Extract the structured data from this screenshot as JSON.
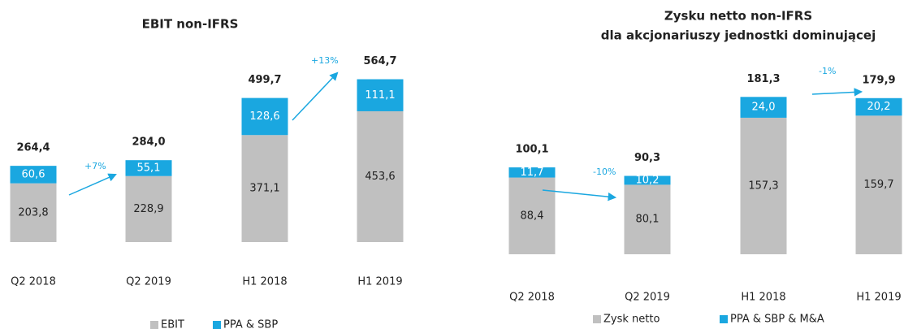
{
  "chart_data": [
    {
      "type": "stacked-bar",
      "title": [
        "EBIT non-IFRS"
      ],
      "categories": [
        "Q2 2018",
        "Q2 2019",
        "H1 2018",
        "H1 2019"
      ],
      "series": [
        {
          "name": "EBIT",
          "color": "#c0c0c0",
          "values": [
            203.8,
            228.9,
            371.1,
            453.6
          ],
          "value_labels": [
            "203,8",
            "228,9",
            "371,1",
            "453,6"
          ]
        },
        {
          "name": "PPA & SBP",
          "color": "#1aa7e0",
          "values": [
            60.6,
            55.1,
            128.6,
            111.1
          ],
          "value_labels": [
            "60,6",
            "55,1",
            "128,6",
            "111,1"
          ]
        }
      ],
      "totals": [
        264.4,
        284.0,
        499.7,
        564.7
      ],
      "total_labels": [
        "264,4",
        "284,0",
        "499,7",
        "564,7"
      ],
      "annotations": [
        "+7%",
        "+13%"
      ],
      "ylim": [
        0,
        600
      ]
    },
    {
      "type": "stacked-bar",
      "title": [
        "Zysku netto non-IFRS",
        "dla akcjonariuszy jednostki dominującej"
      ],
      "categories": [
        "Q2 2018",
        "Q2 2019",
        "H1 2018",
        "H1 2019"
      ],
      "series": [
        {
          "name": "Zysk netto",
          "color": "#c0c0c0",
          "values": [
            88.4,
            80.1,
            157.3,
            159.7
          ],
          "value_labels": [
            "88,4",
            "80,1",
            "157,3",
            "159,7"
          ]
        },
        {
          "name": "PPA & SBP & M&A",
          "color": "#1aa7e0",
          "values": [
            11.7,
            10.2,
            24.0,
            20.2
          ],
          "value_labels": [
            "11,7",
            "10,2",
            "24,0",
            "20,2"
          ]
        }
      ],
      "totals": [
        100.1,
        90.3,
        181.3,
        179.9
      ],
      "total_labels": [
        "100,1",
        "90,3",
        "181,3",
        "179,9"
      ],
      "annotations": [
        "-10%",
        "-1%"
      ],
      "ylim": [
        0,
        190
      ]
    }
  ]
}
